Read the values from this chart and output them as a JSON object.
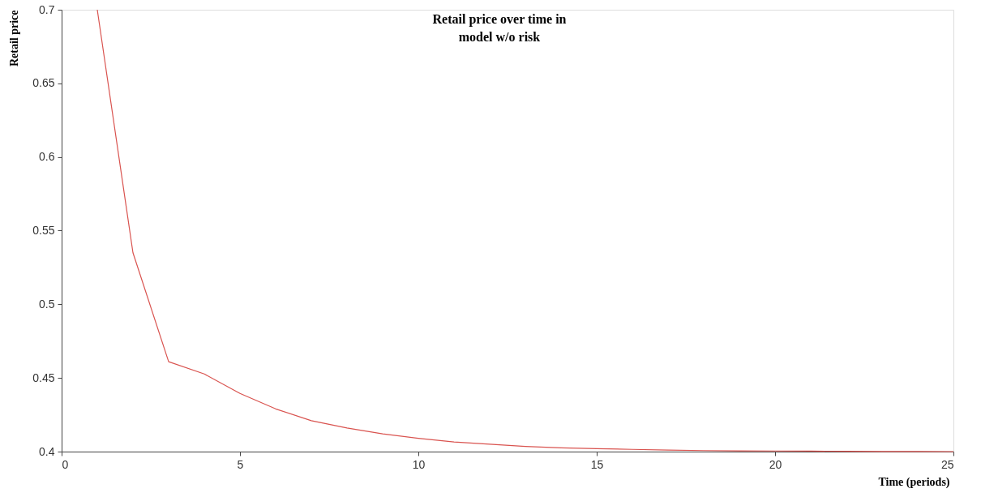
{
  "chart_data": {
    "type": "line",
    "title": "Retail price over time in\nmodel w/o risk",
    "xlabel": "Time (periods)",
    "ylabel": "Retail price",
    "x": [
      1,
      2,
      3,
      4,
      5,
      6,
      7,
      8,
      9,
      10,
      11,
      12,
      13,
      14,
      15,
      16,
      17,
      18,
      19,
      20,
      21,
      22,
      23,
      24,
      25
    ],
    "series": [
      {
        "color": "#d9534f",
        "values": [
          0.7,
          0.535,
          0.461,
          0.4527,
          0.4395,
          0.429,
          0.421,
          0.416,
          0.412,
          0.409,
          0.4065,
          0.405,
          0.4035,
          0.4025,
          0.402,
          0.4015,
          0.401,
          0.4007,
          0.4005,
          0.4004,
          0.4003,
          0.4002,
          0.4001,
          0.4001,
          0.4
        ]
      }
    ],
    "xlim": [
      0,
      25
    ],
    "ylim": [
      0.4,
      0.7
    ],
    "xticks": [
      0,
      5,
      10,
      15,
      20,
      25
    ],
    "yticks": [
      0.4,
      0.45,
      0.5,
      0.55,
      0.6,
      0.65,
      0.7
    ],
    "grid": false,
    "legend": false,
    "marker": "none",
    "line_style": "solid"
  }
}
